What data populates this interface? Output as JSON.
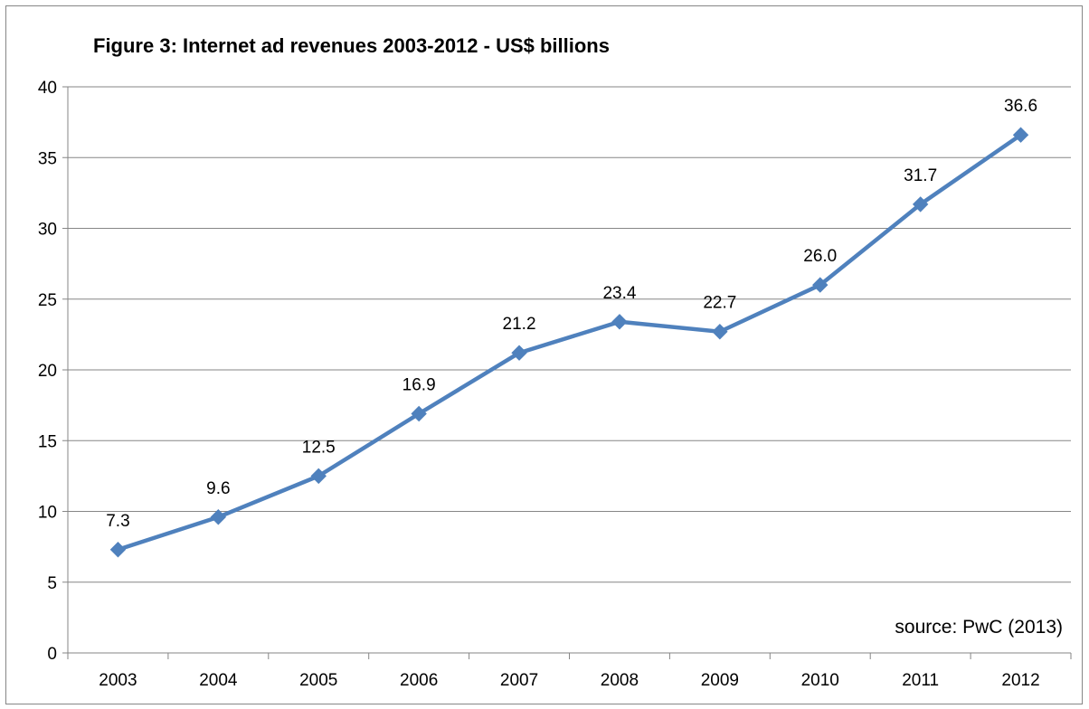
{
  "chart_data": {
    "type": "line",
    "title": "Figure 3: Internet ad revenues 2003-2012 - US$ billions",
    "xlabel": "",
    "ylabel": "",
    "categories": [
      "2003",
      "2004",
      "2005",
      "2006",
      "2007",
      "2008",
      "2009",
      "2010",
      "2011",
      "2012"
    ],
    "series": [
      {
        "values": [
          7.3,
          9.6,
          12.5,
          16.9,
          21.2,
          23.4,
          22.7,
          26.0,
          31.7,
          36.6
        ],
        "data_labels": [
          "7.3",
          "9.6",
          "12.5",
          "16.9",
          "21.2",
          "23.4",
          "22.7",
          "26.0",
          "31.7",
          "36.6"
        ],
        "color": "#4F81BD",
        "marker": "diamond"
      }
    ],
    "ylim": [
      0,
      40
    ],
    "yticks": [
      0,
      5,
      10,
      15,
      20,
      25,
      30,
      35,
      40
    ],
    "ytick_labels": [
      "0",
      "5",
      "10",
      "15",
      "20",
      "25",
      "30",
      "35",
      "40"
    ],
    "grid": true,
    "legend": "none",
    "annotation": "source: PwC (2013)"
  }
}
